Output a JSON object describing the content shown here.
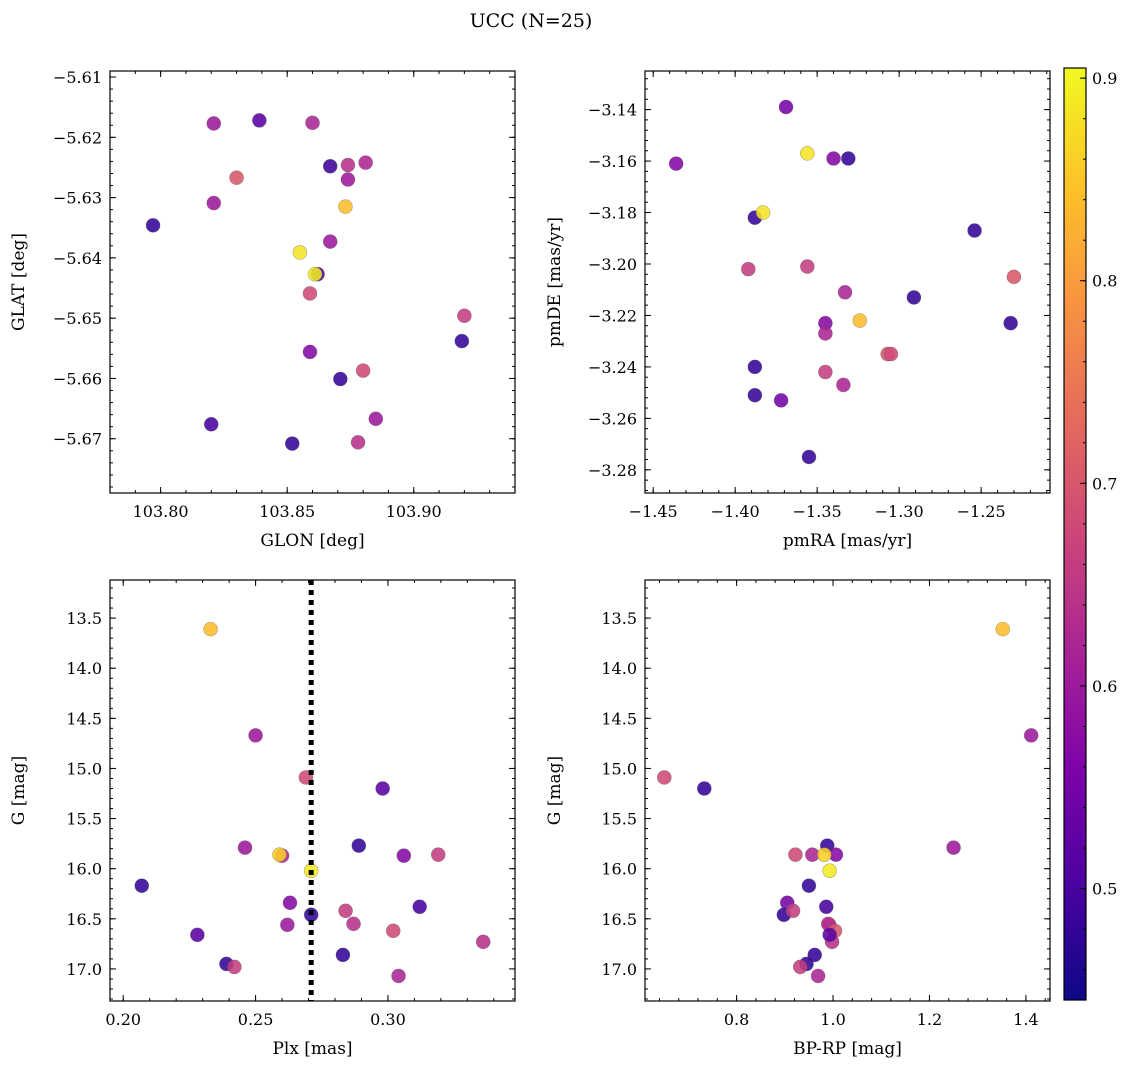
{
  "title": "UCC (N=25)",
  "colorbar": {
    "range": [
      0.445,
      0.905
    ],
    "ticks": [
      "0.5",
      "0.6",
      "0.7",
      "0.8",
      "0.9"
    ],
    "tick_values": [
      0.5,
      0.6,
      0.7,
      0.8,
      0.9
    ],
    "colormap": "plasma"
  },
  "chart_data": [
    {
      "type": "scatter",
      "title": "",
      "xlabel": "GLON [deg]",
      "ylabel": "GLAT [deg]",
      "xlim": [
        103.78,
        103.94
      ],
      "ylim": [
        -5.679,
        -5.609
      ],
      "invert_y": false,
      "xticks": [
        103.8,
        103.85,
        103.9
      ],
      "xtick_labels": [
        "103.80",
        "103.85",
        "103.90"
      ],
      "yticks": [
        -5.61,
        -5.62,
        -5.63,
        -5.64,
        -5.65,
        -5.66,
        -5.67
      ],
      "ytick_labels": [
        "−5.61",
        "−5.62",
        "−5.63",
        "−5.64",
        "−5.65",
        "−5.66",
        "−5.67"
      ],
      "x": [
        103.821,
        103.839,
        103.86,
        103.83,
        103.821,
        103.867,
        103.874,
        103.881,
        103.874,
        103.873,
        103.797,
        103.855,
        103.867,
        103.862,
        103.861,
        103.859,
        103.92,
        103.919,
        103.859,
        103.88,
        103.871,
        103.885,
        103.82,
        103.852,
        103.878
      ],
      "y": [
        -5.6177,
        -5.6172,
        -5.6176,
        -5.6267,
        -5.6309,
        -5.6248,
        -5.6246,
        -5.6242,
        -5.627,
        -5.6315,
        -5.6346,
        -5.6391,
        -5.6373,
        -5.6427,
        -5.6427,
        -5.6459,
        -5.6496,
        -5.6538,
        -5.6556,
        -5.6587,
        -5.6601,
        -5.6667,
        -5.6676,
        -5.6708,
        -5.6706
      ],
      "color_values": [
        0.6,
        0.52,
        0.62,
        0.7,
        0.6,
        0.49,
        0.64,
        0.62,
        0.6,
        0.84,
        0.48,
        0.88,
        0.6,
        0.5,
        0.89,
        0.68,
        0.66,
        0.48,
        0.57,
        0.68,
        0.48,
        0.6,
        0.5,
        0.48,
        0.64
      ],
      "grid": false
    },
    {
      "type": "scatter",
      "title": "",
      "xlabel": "pmRA [mas/yr]",
      "ylabel": "pmDE [mas/yr]",
      "xlim": [
        -1.455,
        -1.208
      ],
      "ylim": [
        -3.289,
        -3.125
      ],
      "invert_y": false,
      "xticks": [
        -1.45,
        -1.4,
        -1.35,
        -1.3,
        -1.25
      ],
      "xtick_labels": [
        "−1.45",
        "−1.40",
        "−1.35",
        "−1.30",
        "−1.25"
      ],
      "yticks": [
        -3.14,
        -3.16,
        -3.18,
        -3.2,
        -3.22,
        -3.24,
        -3.26,
        -3.28
      ],
      "ytick_labels": [
        "−3.14",
        "−3.16",
        "−3.18",
        "−3.20",
        "−3.22",
        "−3.24",
        "−3.26",
        "−3.28"
      ],
      "x": [
        -1.436,
        -1.369,
        -1.356,
        -1.34,
        -1.331,
        -1.388,
        -1.383,
        -1.254,
        -1.392,
        -1.356,
        -1.333,
        -1.291,
        -1.232,
        -1.23,
        -1.345,
        -1.345,
        -1.324,
        -1.307,
        -1.305,
        -1.388,
        -1.345,
        -1.334,
        -1.388,
        -1.372,
        -1.355
      ],
      "y": [
        -3.161,
        -3.139,
        -3.157,
        -3.159,
        -3.159,
        -3.182,
        -3.18,
        -3.187,
        -3.202,
        -3.201,
        -3.211,
        -3.213,
        -3.223,
        -3.205,
        -3.223,
        -3.227,
        -3.222,
        -3.235,
        -3.235,
        -3.24,
        -3.242,
        -3.247,
        -3.251,
        -3.253,
        -3.275
      ],
      "color_values": [
        0.57,
        0.55,
        0.88,
        0.57,
        0.48,
        0.48,
        0.88,
        0.48,
        0.66,
        0.66,
        0.62,
        0.48,
        0.48,
        0.7,
        0.57,
        0.62,
        0.84,
        0.7,
        0.68,
        0.48,
        0.66,
        0.62,
        0.48,
        0.55,
        0.48
      ],
      "grid": false
    },
    {
      "type": "scatter",
      "title": "",
      "xlabel": "Plx [mas]",
      "ylabel": "G [mag]",
      "xlim": [
        0.195,
        0.348
      ],
      "ylim": [
        17.32,
        13.12
      ],
      "invert_y": true,
      "xticks": [
        0.2,
        0.25,
        0.3
      ],
      "xtick_labels": [
        "0.20",
        "0.25",
        "0.30"
      ],
      "yticks": [
        13.5,
        14.0,
        14.5,
        15.0,
        15.5,
        16.0,
        16.5,
        17.0
      ],
      "ytick_labels": [
        "13.5",
        "14.0",
        "14.5",
        "15.0",
        "15.5",
        "16.0",
        "16.5",
        "17.0"
      ],
      "vline": 0.271,
      "x": [
        0.233,
        0.25,
        0.269,
        0.298,
        0.246,
        0.26,
        0.259,
        0.289,
        0.306,
        0.319,
        0.207,
        0.271,
        0.263,
        0.312,
        0.271,
        0.284,
        0.262,
        0.287,
        0.302,
        0.336,
        0.228,
        0.283,
        0.239,
        0.242,
        0.304
      ],
      "y": [
        13.61,
        14.67,
        15.09,
        15.2,
        15.79,
        15.87,
        15.86,
        15.77,
        15.87,
        15.86,
        16.17,
        16.02,
        16.34,
        16.38,
        16.46,
        16.42,
        16.56,
        16.55,
        16.62,
        16.73,
        16.66,
        16.86,
        16.95,
        16.98,
        17.07
      ],
      "color_values": [
        0.84,
        0.6,
        0.68,
        0.52,
        0.6,
        0.62,
        0.86,
        0.48,
        0.57,
        0.66,
        0.48,
        0.89,
        0.57,
        0.5,
        0.48,
        0.66,
        0.6,
        0.64,
        0.68,
        0.64,
        0.52,
        0.48,
        0.48,
        0.66,
        0.62
      ],
      "grid": false
    },
    {
      "type": "scatter",
      "title": "",
      "xlabel": "BP-RP [mag]",
      "ylabel": "G [mag]",
      "xlim": [
        0.61,
        1.45
      ],
      "ylim": [
        17.32,
        13.12
      ],
      "invert_y": true,
      "xticks": [
        0.8,
        1.0,
        1.2,
        1.4
      ],
      "xtick_labels": [
        "0.8",
        "1.0",
        "1.2",
        "1.4"
      ],
      "yticks": [
        13.5,
        14.0,
        14.5,
        15.0,
        15.5,
        16.0,
        16.5,
        17.0
      ],
      "ytick_labels": [
        "13.5",
        "14.0",
        "14.5",
        "15.0",
        "15.5",
        "16.0",
        "16.5",
        "17.0"
      ],
      "x": [
        1.352,
        1.411,
        0.65,
        0.733,
        1.25,
        0.922,
        0.957,
        0.988,
        1.006,
        0.982,
        0.95,
        0.993,
        0.905,
        0.986,
        0.898,
        0.917,
        0.992,
        0.99,
        1.004,
        0.998,
        0.993,
        0.962,
        0.945,
        0.932,
        0.969
      ],
      "y": [
        13.61,
        14.67,
        15.09,
        15.2,
        15.79,
        15.86,
        15.86,
        15.77,
        15.86,
        15.86,
        16.17,
        16.02,
        16.34,
        16.38,
        16.46,
        16.42,
        16.56,
        16.55,
        16.62,
        16.73,
        16.66,
        16.86,
        16.95,
        16.98,
        17.07
      ],
      "color_values": [
        0.84,
        0.6,
        0.68,
        0.48,
        0.6,
        0.68,
        0.62,
        0.48,
        0.57,
        0.86,
        0.48,
        0.89,
        0.55,
        0.5,
        0.48,
        0.66,
        0.6,
        0.64,
        0.7,
        0.64,
        0.52,
        0.48,
        0.48,
        0.66,
        0.62
      ],
      "grid": false
    }
  ]
}
